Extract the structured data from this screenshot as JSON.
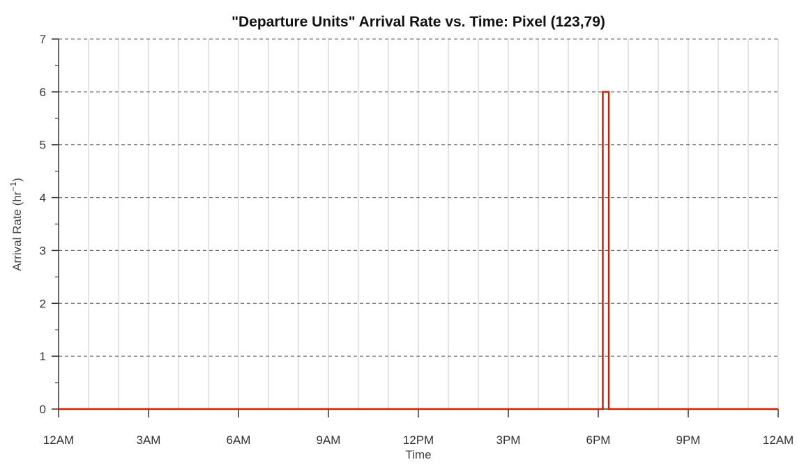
{
  "chart_data": {
    "type": "line",
    "title": "\"Departure Units\" Arrival Rate vs. Time: Pixel (123,79)",
    "xlabel": "Time",
    "ylabel": "Arrival Rate (hr",
    "ylabel_sup": "−1",
    "ylabel_end": ")",
    "x_tick_labels": [
      "12AM",
      "3AM",
      "6AM",
      "9AM",
      "12PM",
      "3PM",
      "6PM",
      "9PM",
      "12AM"
    ],
    "x_ticks_hours": [
      0,
      3,
      6,
      9,
      12,
      15,
      18,
      21,
      24
    ],
    "xlim_hours": [
      0,
      24
    ],
    "y_ticks": [
      0,
      1,
      2,
      3,
      4,
      5,
      6,
      7
    ],
    "ylim": [
      0,
      7
    ],
    "vertical_grid_hours": [
      1,
      2,
      3,
      4,
      5,
      6,
      7,
      8,
      9,
      10,
      11,
      12,
      13,
      14,
      15,
      16,
      17,
      18,
      19,
      20,
      21,
      22,
      23,
      24
    ],
    "grid": true,
    "series": [
      {
        "color": "#cc2200",
        "points": [
          [
            0,
            0
          ],
          [
            18.15,
            0
          ],
          [
            18.15,
            6
          ],
          [
            18.35,
            6
          ],
          [
            18.35,
            0
          ],
          [
            24,
            0
          ]
        ]
      }
    ]
  }
}
